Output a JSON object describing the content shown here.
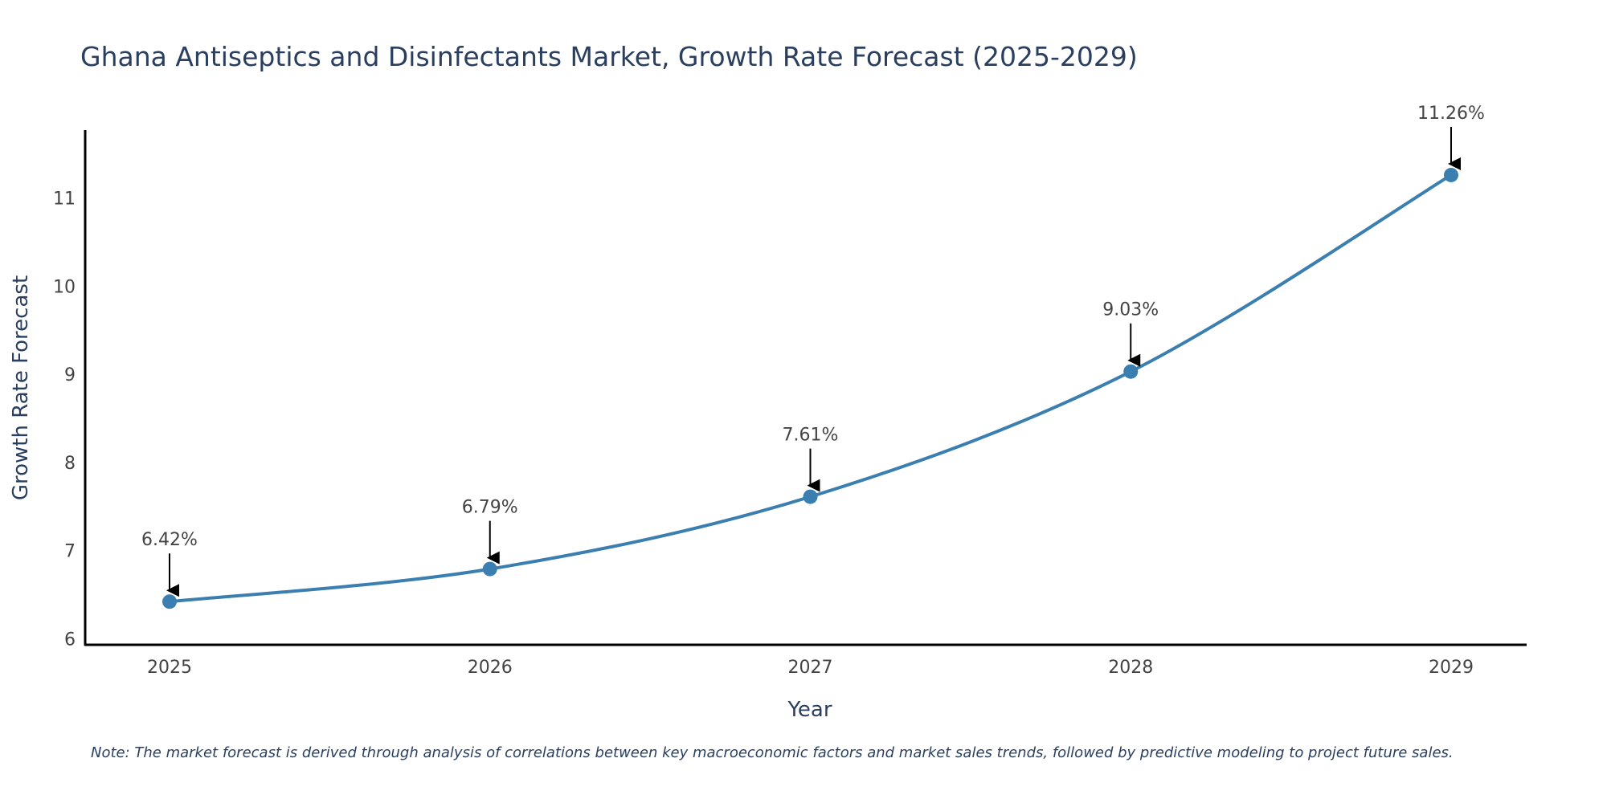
{
  "chart_data": {
    "type": "line",
    "title": "Ghana Antiseptics and Disinfectants Market, Growth Rate Forecast (2025-2029)",
    "xlabel": "Year",
    "ylabel": "Growth Rate Forecast",
    "x": [
      "2025",
      "2026",
      "2027",
      "2028",
      "2029"
    ],
    "series": [
      {
        "name": "Growth Rate Forecast",
        "values": [
          6.42,
          6.79,
          7.61,
          9.03,
          11.26
        ],
        "color": "#3a7fb0"
      }
    ],
    "annotations": [
      "6.42%",
      "6.79%",
      "7.61%",
      "9.03%",
      "11.26%"
    ],
    "yticks": [
      6,
      7,
      8,
      9,
      10,
      11
    ],
    "ylim": [
      5.93,
      11.77
    ],
    "grid": false,
    "line_shape": "spline",
    "note": "Note: The market forecast is derived through analysis of correlations between key macroeconomic factors and market sales trends, followed by predictive modeling to project future sales."
  }
}
